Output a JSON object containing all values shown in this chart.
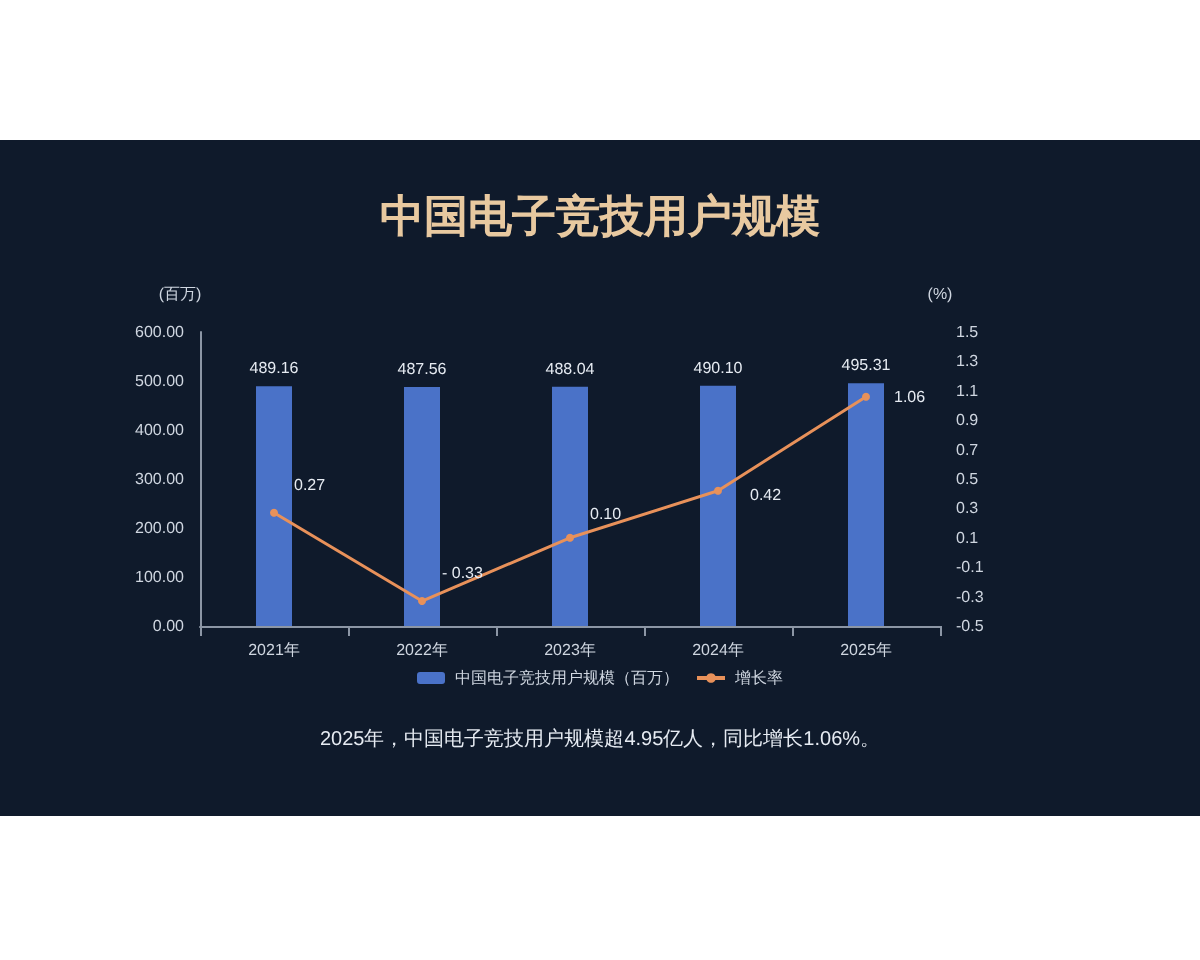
{
  "chart_data": {
    "type": "bar",
    "title": "中国电子竞技用户规模",
    "ylabel": "(百万)",
    "y2label": "(%)",
    "categories": [
      "2021年",
      "2022年",
      "2023年",
      "2024年",
      "2025年"
    ],
    "series": [
      {
        "name": "中国电子竞技用户规模（百万）",
        "color": "#4a72c8",
        "values": [
          489.16,
          487.56,
          488.04,
          490.1,
          495.31
        ],
        "value_labels": [
          "489.16",
          "487.56",
          "488.04",
          "490.10",
          "495.31"
        ]
      },
      {
        "name": "增长率",
        "type": "line",
        "axis": "y2",
        "color": "#e8915a",
        "marker": "circle",
        "values": [
          0.27,
          -0.33,
          0.1,
          0.42,
          1.06
        ],
        "value_labels": [
          "0.27",
          "- 0.33",
          "0.10",
          "0.42",
          "1.06"
        ]
      }
    ],
    "ylim": [
      0,
      600
    ],
    "yticks": [
      {
        "value": 0,
        "label": "0.00"
      },
      {
        "value": 100,
        "label": "100.00"
      },
      {
        "value": 200,
        "label": "200.00"
      },
      {
        "value": 300,
        "label": "300.00"
      },
      {
        "value": 400,
        "label": "400.00"
      },
      {
        "value": 500,
        "label": "500.00"
      },
      {
        "value": 600,
        "label": "600.00"
      }
    ],
    "y2lim": [
      -0.5,
      1.5
    ],
    "y2ticks": [
      -0.5,
      -0.3,
      -0.1,
      0.1,
      0.3,
      0.5,
      0.7,
      0.9,
      1.1,
      1.3,
      1.5
    ],
    "legend": "bottom",
    "grid": false,
    "annotations": [
      "2025年，中国电子竞技用户规模超4.95亿人，同比增长1.06%。"
    ]
  }
}
